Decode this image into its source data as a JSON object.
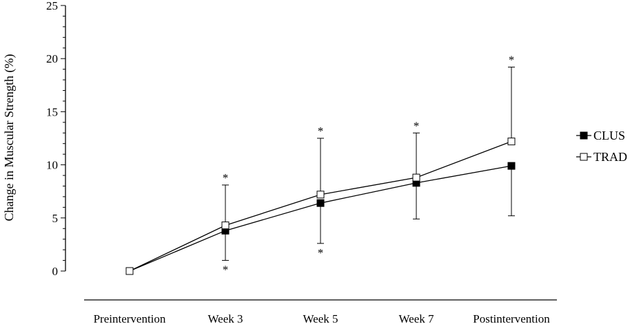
{
  "chart_data": {
    "type": "line",
    "title": "",
    "ylabel": "Change in Muscular Strength (%)",
    "xlabel": "",
    "categories": [
      "Preintervention",
      "Week 3",
      "Week 5",
      "Week 7",
      "Postintervention"
    ],
    "ylim": [
      0,
      25
    ],
    "yticks": [
      0,
      5,
      10,
      15,
      20,
      25
    ],
    "grid": false,
    "legend_position": "right",
    "series": [
      {
        "name": "CLUS",
        "marker": "filled-square",
        "color": "#000000",
        "values": [
          0,
          3.8,
          6.4,
          8.3,
          9.9
        ],
        "error_down": [
          0,
          2.8,
          3.8,
          3.4,
          4.7
        ],
        "significance": [
          "",
          "*",
          "*",
          "",
          ""
        ]
      },
      {
        "name": "TRAD",
        "marker": "open-square",
        "color": "#000000",
        "values": [
          0,
          4.3,
          7.2,
          8.8,
          12.2
        ],
        "error_up": [
          0,
          3.8,
          5.3,
          4.2,
          7.0
        ],
        "significance": [
          "",
          "*",
          "*",
          "*",
          "*"
        ]
      }
    ]
  }
}
